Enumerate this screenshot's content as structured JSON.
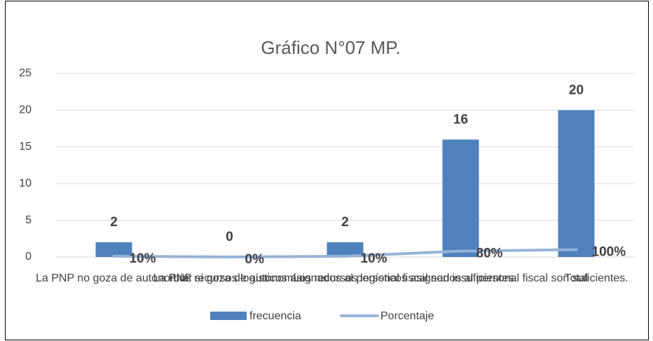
{
  "chart_data": {
    "type": "bar_line",
    "title": "Gráfico N°07 MP.",
    "categories": [
      "La PNP no goza de autonomía.",
      "La PNP sí goza de autonomía.",
      "Los recursos logísticos asignados al personal fiscal son insuficientes.",
      "Los recursos logísticos asignados al personal fiscal son suficientes.",
      "Total"
    ],
    "series": [
      {
        "name": "frecuencia",
        "type": "bar",
        "color": "#4f81bd",
        "values": [
          2,
          0,
          2,
          16,
          20
        ]
      },
      {
        "name": "Porcentaje",
        "type": "line",
        "color": "#95b3d7",
        "values": [
          0.1,
          0,
          0.1,
          0.8,
          1
        ],
        "value_labels": [
          "10%",
          "0%",
          "10%",
          "80%",
          "100%"
        ]
      }
    ],
    "ylim": [
      0,
      25
    ],
    "yticks": [
      0,
      5,
      10,
      15,
      20,
      25
    ],
    "grid": true,
    "legend": "bottom"
  }
}
